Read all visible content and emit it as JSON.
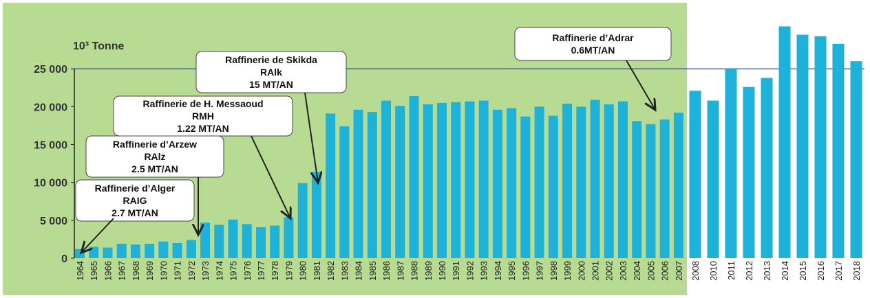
{
  "chart_data": {
    "type": "bar",
    "y_label": "10³ Tonne",
    "categories": [
      "1964",
      "1965",
      "1966",
      "1967",
      "1968",
      "1969",
      "1970",
      "1971",
      "1972",
      "1973",
      "1974",
      "1975",
      "1976",
      "1977",
      "1978",
      "1979",
      "1980",
      "1981",
      "1982",
      "1983",
      "1984",
      "1985",
      "1986",
      "1987",
      "1988",
      "1989",
      "1990",
      "1991",
      "1992",
      "1993",
      "1994",
      "1995",
      "1996",
      "1997",
      "1998",
      "1999",
      "2000",
      "2001",
      "2002",
      "2003",
      "2004",
      "2005",
      "2006",
      "2007",
      "2008",
      "2010",
      "2011",
      "2012",
      "2013",
      "2014",
      "2015",
      "2016",
      "2017",
      "2018"
    ],
    "values": [
      1200,
      1500,
      1400,
      1900,
      1800,
      1900,
      2200,
      2000,
      2400,
      4700,
      4400,
      5100,
      4500,
      4100,
      4300,
      5400,
      9900,
      11400,
      19100,
      17400,
      19600,
      19300,
      20800,
      20100,
      21400,
      20300,
      20500,
      20600,
      20700,
      20800,
      19600,
      19800,
      18700,
      20000,
      18800,
      20400,
      20000,
      20900,
      20300,
      20700,
      18100,
      17700,
      18300,
      19200,
      22100,
      20800,
      25000,
      22600,
      23800,
      30600,
      29500,
      29300,
      28300,
      26000
    ],
    "color": "#1cb2d9",
    "ylim": [
      0,
      31000
    ],
    "yticks": [
      0,
      {
        "value": 5000,
        "label": "5 000"
      },
      {
        "value": 10000,
        "label": "10 000"
      },
      {
        "value": 15000,
        "label": "15 000"
      },
      {
        "value": 20000,
        "label": "20 000"
      },
      {
        "value": 25000,
        "label": "25 000"
      }
    ],
    "reference_line": 25000,
    "annotations": [
      {
        "lines": [
          "Raffinerie d’Alger",
          "RAIG",
          "2.7 MT/AN"
        ]
      },
      {
        "lines": [
          "Raffinerie d’Arzew",
          "RAlz",
          "2.5 MT/AN"
        ]
      },
      {
        "lines": [
          "Raffinerie de H. Messaoud",
          "RMH",
          "1.22 MT/AN"
        ]
      },
      {
        "lines": [
          "Raffinerie de Skikda",
          "RAlk",
          "15 MT/AN"
        ]
      },
      {
        "lines": [
          "Raffinerie d’Adrar",
          "0.6MT/AN"
        ]
      }
    ]
  }
}
